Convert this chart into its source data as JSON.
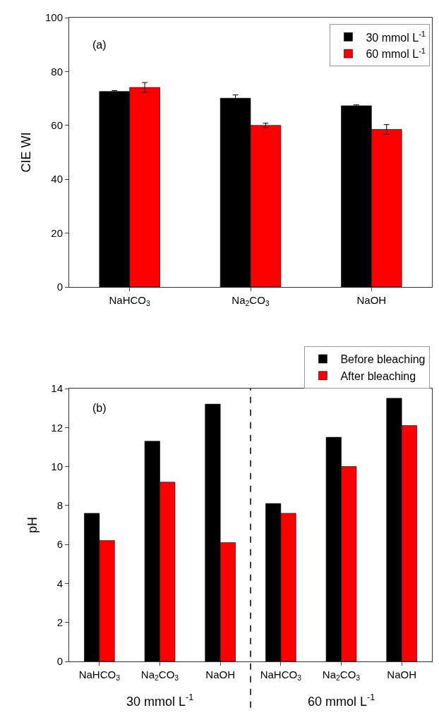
{
  "chart_data": [
    {
      "type": "bar",
      "ylabel": "CIE WI",
      "annotations": [
        "(a)"
      ],
      "categories": [
        "NaHCO$_{3}$",
        "Na$_{2}$CO$_{3}$",
        "NaOH"
      ],
      "series": [
        {
          "name": "30 mmol L$^{-1}$",
          "color": "#000000",
          "values": [
            72.6,
            70.1,
            67.3
          ],
          "errors": [
            0.3,
            1.2,
            0.3
          ]
        },
        {
          "name": "60 mmol L$^{-1}$",
          "color": "#ff0000",
          "values": [
            74.1,
            60.0,
            58.5
          ],
          "errors": [
            1.8,
            0.8,
            1.8
          ]
        }
      ],
      "ylim": [
        0,
        100
      ],
      "yticks": [
        0,
        20,
        40,
        60,
        80,
        100
      ],
      "legend": "top right"
    },
    {
      "type": "bar",
      "ylabel": "pH",
      "annotations": [
        "(b)",
        "30 mmol L$^{-1}$",
        "60 mmol L$^{-1}$"
      ],
      "categories": [
        "NaHCO$_{3}$",
        "Na$_{2}$CO$_{3}$",
        "NaOH",
        "NaHCO$_{3}$",
        "Na$_{2}$CO$_{3}$",
        "NaOH"
      ],
      "series": [
        {
          "name": "Before bleaching",
          "color": "#000000",
          "values": [
            7.6,
            11.3,
            13.2,
            8.1,
            11.5,
            13.5
          ]
        },
        {
          "name": "After bleaching",
          "color": "#ff0000",
          "values": [
            6.2,
            9.2,
            6.1,
            7.6,
            10.0,
            12.1
          ]
        }
      ],
      "ylim": [
        0,
        14
      ],
      "yticks": [
        0,
        2,
        4,
        6,
        8,
        10,
        12,
        14
      ],
      "legend": "top right"
    }
  ]
}
